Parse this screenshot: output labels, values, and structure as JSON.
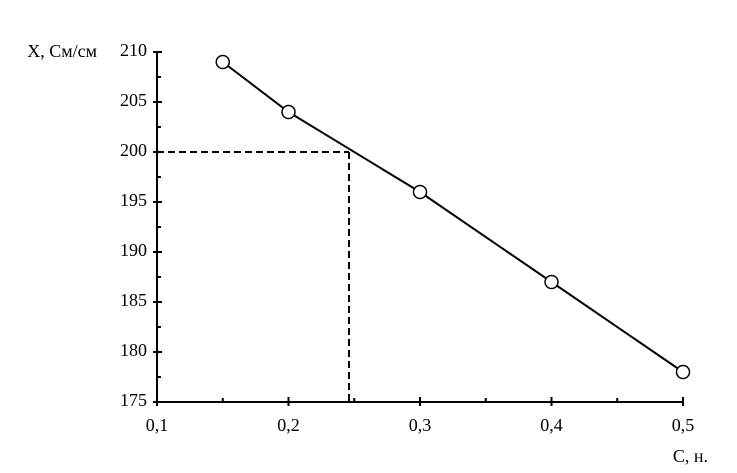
{
  "chart_data": {
    "type": "line",
    "x_label": "C, н.",
    "y_label": "X, См/см",
    "x": [
      0.15,
      0.2,
      0.3,
      0.4,
      0.5
    ],
    "series": [
      {
        "color": "#000000",
        "values": [
          209,
          204,
          196,
          187,
          178
        ]
      }
    ],
    "xlim": [
      0.1,
      0.5
    ],
    "xticks": [
      {
        "value": 0.1,
        "label": "0,1"
      },
      {
        "value": 0.2,
        "label": "0,2"
      },
      {
        "value": 0.3,
        "label": "0,3"
      },
      {
        "value": 0.4,
        "label": "0,4"
      },
      {
        "value": 0.5,
        "label": "0,5"
      }
    ],
    "xminorticks": [
      0.15,
      0.25,
      0.35,
      0.45
    ],
    "ylim": [
      175,
      210
    ],
    "yticks": [
      175,
      180,
      185,
      190,
      195,
      200,
      205,
      210
    ],
    "yminorticks": [
      177.5,
      182.5,
      187.5,
      192.5,
      197.5,
      202.5,
      207.5
    ],
    "reading": {
      "x": 0.246,
      "y": 200
    }
  }
}
